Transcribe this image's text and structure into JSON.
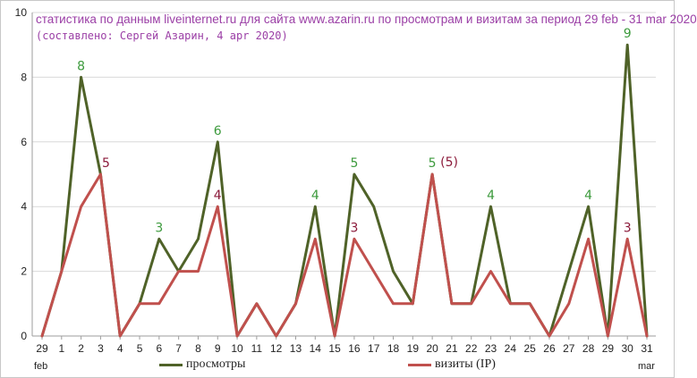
{
  "chart_data": {
    "type": "line",
    "title": "статистика по данным liveinternet.ru для сайта www.azarin.ru по просмотрам и визитам за период 29 feb - 31 mar 2020",
    "subtitle": "(составлено: Сергей Азарин, 4 apr 2020)",
    "categories": [
      "29",
      "1",
      "2",
      "3",
      "4",
      "5",
      "6",
      "7",
      "8",
      "9",
      "10",
      "11",
      "12",
      "13",
      "14",
      "15",
      "16",
      "17",
      "18",
      "19",
      "20",
      "21",
      "22",
      "23",
      "24",
      "25",
      "26",
      "27",
      "28",
      "29",
      "30",
      "31"
    ],
    "x_left_note": "feb",
    "x_right_note": "mar",
    "ylim": [
      0,
      10
    ],
    "yticks": [
      0,
      2,
      4,
      6,
      8,
      10
    ],
    "grid": true,
    "series": [
      {
        "name": "просмотры",
        "color": "#4f6228",
        "values": [
          0,
          2,
          8,
          5,
          0,
          1,
          3,
          2,
          3,
          6,
          0,
          1,
          0,
          1,
          4,
          0,
          5,
          4,
          2,
          1,
          5,
          1,
          1,
          4,
          1,
          1,
          0,
          2,
          4,
          0,
          9,
          0
        ]
      },
      {
        "name": "визиты (IP)",
        "color": "#c0504d",
        "values": [
          0,
          2,
          4,
          5,
          0,
          1,
          1,
          2,
          2,
          4,
          0,
          1,
          0,
          1,
          3,
          0,
          3,
          2,
          1,
          1,
          5,
          1,
          1,
          2,
          1,
          1,
          0,
          1,
          3,
          0,
          3,
          0
        ]
      }
    ],
    "annotations": [
      {
        "text": "8",
        "category_index": 2,
        "value": 8,
        "series": 0
      },
      {
        "text": "5",
        "category_index": 3,
        "value": 5,
        "series": 1
      },
      {
        "text": "3",
        "category_index": 6,
        "value": 3,
        "series": 0
      },
      {
        "text": "6",
        "category_index": 9,
        "value": 6,
        "series": 0
      },
      {
        "text": "4",
        "category_index": 9,
        "value": 4,
        "series": 1
      },
      {
        "text": "4",
        "category_index": 14,
        "value": 4,
        "series": 0
      },
      {
        "text": "5",
        "category_index": 16,
        "value": 5,
        "series": 0
      },
      {
        "text": "3",
        "category_index": 16,
        "value": 3,
        "series": 1
      },
      {
        "text": "5",
        "category_index": 20,
        "value": 5,
        "series": 0
      },
      {
        "text": "(5)",
        "category_index": 20,
        "value": 5,
        "series": 1
      },
      {
        "text": "4",
        "category_index": 23,
        "value": 4,
        "series": 0
      },
      {
        "text": "4",
        "category_index": 28,
        "value": 4,
        "series": 0
      },
      {
        "text": "3",
        "category_index": 30,
        "value": 3,
        "series": 1
      },
      {
        "text": "9",
        "category_index": 30,
        "value": 9,
        "series": 0
      }
    ]
  }
}
